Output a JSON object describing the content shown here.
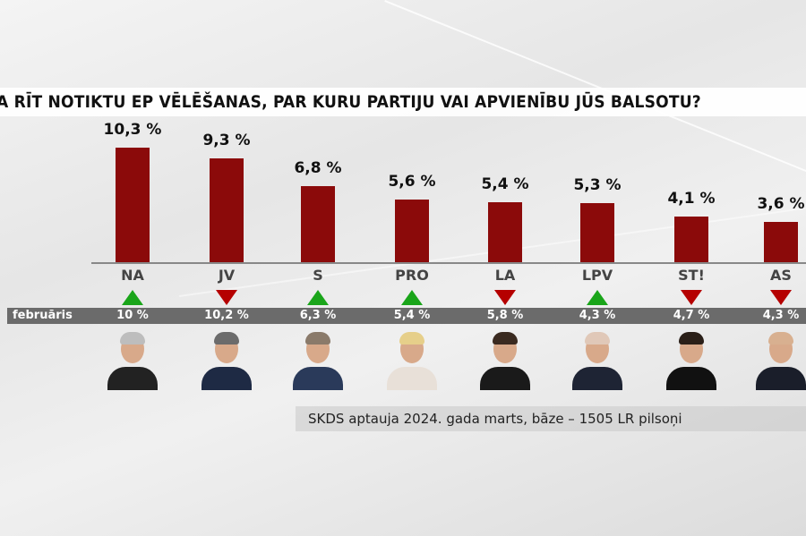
{
  "title": "A RĪT NOTIKTU EP VĒLĒŠANAS, PAR KURU PARTIJU VAI APVIENĪBU JŪS BALSOTU?",
  "source": "SKDS aptauja 2024. gada marts, bāze – 1505 LR pilsoņi",
  "colors": {
    "bar": "#8b0a0a",
    "up": "#1aa51a",
    "down": "#b50000",
    "prev_row": "#6b6b6b"
  },
  "chart_data": {
    "type": "bar",
    "categories": [
      "NA",
      "JV",
      "S",
      "PRO",
      "LA",
      "LPV",
      "ST!",
      "AS"
    ],
    "values": [
      10.3,
      9.3,
      6.8,
      5.6,
      5.4,
      5.3,
      4.1,
      3.6
    ],
    "value_labels": [
      "10,3 %",
      "9,3 %",
      "6,8 %",
      "5,6 %",
      "5,4 %",
      "5,3 %",
      "4,1 %",
      "3,6 %"
    ],
    "previous": {
      "label": "februāris",
      "values": [
        10,
        10.2,
        6.3,
        5.4,
        5.8,
        4.3,
        4.7,
        4.3
      ],
      "value_labels": [
        "10 %",
        "10,2 %",
        "6,3 %",
        "5,4 %",
        "5,8 %",
        "4,3 %",
        "4,7 %",
        "4,3 %"
      ]
    },
    "trend": [
      "up",
      "down",
      "up",
      "up",
      "down",
      "up",
      "down",
      "down"
    ],
    "ylim": [
      0,
      10.3
    ]
  },
  "avatars": [
    {
      "hair": "#bdbdbd",
      "suit": "#222"
    },
    {
      "hair": "#6b6b6b",
      "suit": "#1e2a44"
    },
    {
      "hair": "#8a7a6a",
      "suit": "#2a3a5a"
    },
    {
      "hair": "#e6cf8a",
      "suit": "#e8e0d8"
    },
    {
      "hair": "#3a2a20",
      "suit": "#1a1a1a"
    },
    {
      "hair": "#e0c8b8",
      "suit": "#1e2434"
    },
    {
      "hair": "#2a1f18",
      "suit": "#111"
    },
    {
      "hair": "#d8b090",
      "suit": "#1a1e2a"
    }
  ]
}
